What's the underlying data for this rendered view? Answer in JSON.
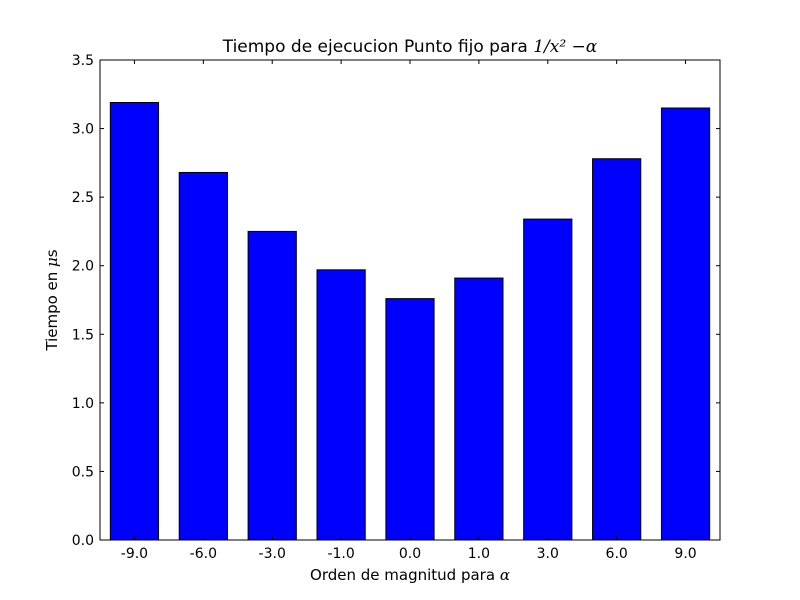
{
  "chart_data": {
    "type": "bar",
    "title_text": "Tiempo de ejecucion Punto fijo para ",
    "title_math": "1/x² −α",
    "xlabel_text": "Orden de magnitud para ",
    "xlabel_math": "α",
    "ylabel_text": "Tiempo en ",
    "ylabel_math": "μ",
    "ylabel_unit": "s",
    "categories": [
      "-9.0",
      "-6.0",
      "-3.0",
      "-1.0",
      "0.0",
      "1.0",
      "3.0",
      "6.0",
      "9.0"
    ],
    "values": [
      3.19,
      2.68,
      2.25,
      1.97,
      1.76,
      1.91,
      2.34,
      2.78,
      3.15
    ],
    "ylim": [
      0,
      3.5
    ],
    "yticks": [
      "0.0",
      "0.5",
      "1.0",
      "1.5",
      "2.0",
      "2.5",
      "3.0",
      "3.5"
    ],
    "grid": false,
    "bar_color": "#0000ff"
  }
}
